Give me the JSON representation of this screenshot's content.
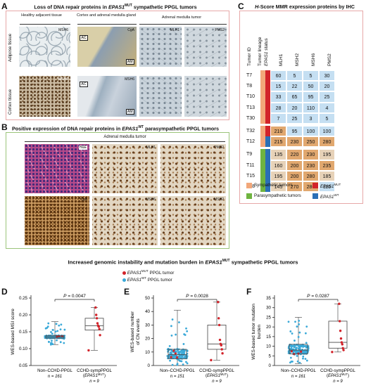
{
  "panelA": {
    "letter": "A",
    "title_pre": "Loss of DNA repair proteins in ",
    "title_gene": "EPAS1",
    "title_sup": "MUT",
    "title_post": " sympathetic PPGL tumors",
    "col_headers": [
      "Healthy adjacent tissue",
      "Cortex and adrenal medulla gland",
      "Adrenal medulla tumor"
    ],
    "row_labels": [
      "Adipose tissue",
      "Cortex tissue"
    ],
    "img_tags": {
      "r1c1": "MSH6",
      "r1c2": "CgA",
      "r1c3": "MLH1",
      "r1c4": "PMS2",
      "r2c1": "MSH6",
      "r2c2": "MSH6"
    },
    "box_labels": {
      "ac": "AC",
      "am": "AM"
    }
  },
  "panelB": {
    "letter": "B",
    "title_pre": "Positive expression of DNA repair proteins in ",
    "title_gene": "EPAS1",
    "title_sup": "WT",
    "title_post": " parasympathetic PPGL tumors",
    "col_header": "Adrenal medulla tumor",
    "img_tags": [
      "H&E",
      "MLH1",
      "PMS2",
      "CgA",
      "MSH6",
      "MSH2"
    ]
  },
  "panelC": {
    "letter": "C",
    "title_pre": "H",
    "title_post": "-Score MMR expression proteins by IHC",
    "col_headers": [
      "Tumor ID",
      "Tumor lineage",
      "EPAS1 status",
      "MLH1",
      "MSH2",
      "MSH6",
      "PMS2"
    ],
    "rows": [
      {
        "id": "T7",
        "values": [
          60,
          5,
          5,
          30
        ],
        "lineage": "sympathetic",
        "status": "MUT"
      },
      {
        "id": "T8",
        "values": [
          15,
          22,
          50,
          20
        ],
        "lineage": "sympathetic",
        "status": "MUT"
      },
      {
        "id": "T10",
        "values": [
          33,
          65,
          95,
          25
        ],
        "lineage": "sympathetic",
        "status": "MUT"
      },
      {
        "id": "T13",
        "values": [
          28,
          20,
          110,
          4
        ],
        "lineage": "sympathetic",
        "status": "MUT"
      },
      {
        "id": "T30",
        "values": [
          7,
          25,
          3,
          5
        ],
        "lineage": "sympathetic",
        "status": "MUT"
      },
      {
        "id": "T32",
        "values": [
          210,
          95,
          100,
          100
        ],
        "lineage": "sympathetic",
        "status": "MUT"
      },
      {
        "id": "T12",
        "values": [
          215,
          230,
          250,
          280
        ],
        "lineage": "sympathetic",
        "status": "WT"
      },
      {
        "id": "T9",
        "values": [
          135,
          220,
          230,
          195
        ],
        "lineage": "parasympathetic",
        "status": "WT"
      },
      {
        "id": "T11",
        "values": [
          160,
          200,
          230,
          235
        ],
        "lineage": "parasympathetic",
        "status": "WT"
      },
      {
        "id": "T15",
        "values": [
          195,
          200,
          280,
          185
        ],
        "lineage": "parasympathetic",
        "status": "WT"
      },
      {
        "id": "T18",
        "values": [
          145,
          270,
          280,
          115
        ],
        "lineage": "parasympathetic",
        "status": "WT"
      }
    ],
    "legend": {
      "symp": "Sympathetic tumors",
      "para": "Parasympathetic tumors",
      "mut_gene": "EPAS1",
      "mut_sup": "MUT",
      "wt_gene": "EPAS1",
      "wt_sup": "WT"
    },
    "colors": {
      "low": "#c5dff2",
      "mid": "#e7d2b8",
      "high": "#e1a86f",
      "symp": "#f2a77a",
      "para": "#6fb440",
      "mut": "#d2232a",
      "wt": "#2a6fb6"
    }
  },
  "bottom": {
    "title_pre": "Increased genomic instability and mutation burden in ",
    "title_gene": "EPAS1",
    "title_sup": "MUT",
    "title_post": " sympathetic PPGL tumors",
    "legend_mut": "PPGL tumor",
    "legend_wt": "PPGL tumor",
    "legend_gene": "EPAS1",
    "legend_mut_sup": "MUT",
    "legend_wt_sup": "WT"
  },
  "chart_data": [
    {
      "type": "box",
      "panel": "D",
      "ylabel": "WES-based MSI score",
      "ylim": [
        0.05,
        0.25
      ],
      "yticks": [
        0.05,
        0.1,
        0.15,
        0.2,
        0.25
      ],
      "ytick_labels": [
        "0.05",
        "0.10",
        "0.15",
        "0.20",
        "0.25"
      ],
      "pvalue": "P = 0.0047",
      "groups": [
        {
          "label": "Non–CCHD-PPGL",
          "n": "n = 161",
          "min": 0.112,
          "q1": 0.131,
          "median": 0.135,
          "q3": 0.139,
          "max": 0.18
        },
        {
          "label": "CCHD-sympPPGL",
          "sublabel": "(EPAS1MUT)",
          "n": "n = 9",
          "min": 0.095,
          "q1": 0.155,
          "median": 0.168,
          "q3": 0.19,
          "max": 0.222,
          "points": [
            0.095,
            0.14,
            0.158,
            0.165,
            0.168,
            0.175,
            0.19,
            0.2,
            0.222
          ]
        }
      ]
    },
    {
      "type": "box",
      "panel": "E",
      "ylabel": "WES-based number of CN events",
      "ylim": [
        0,
        50
      ],
      "yticks": [
        0,
        10,
        20,
        30,
        40,
        50
      ],
      "pvalue": "P = 0.0028",
      "groups": [
        {
          "label": "Non–CCHD-PPGL",
          "n": "n = 151",
          "min": 0,
          "q1": 5,
          "median": 8,
          "q3": 12,
          "max": 41
        },
        {
          "label": "CCHD-sympPPGL",
          "sublabel": "(EPAS1MUT)",
          "n": "n = 9",
          "min": 4,
          "q1": 12,
          "median": 16,
          "q3": 30,
          "max": 47,
          "points": [
            4,
            9,
            12,
            15,
            16,
            19,
            30,
            35,
            47
          ]
        }
      ]
    },
    {
      "type": "box",
      "panel": "F",
      "ylabel": "WES-based tumor mutation burden",
      "ylim": [
        0,
        35
      ],
      "yticks": [
        0,
        5,
        10,
        15,
        20,
        25,
        30,
        35
      ],
      "pvalue": "P = 0.0287",
      "groups": [
        {
          "label": "Non–CCHD-PPGL",
          "n": "n = 161",
          "min": 1,
          "q1": 6,
          "median": 8,
          "q3": 11,
          "max": 25
        },
        {
          "label": "CCHD-sympPPGL",
          "sublabel": "(EPAS1MUT)",
          "n": "n = 9",
          "min": 7,
          "q1": 9,
          "median": 12,
          "q3": 23,
          "max": 32,
          "points": [
            7,
            8,
            9,
            11,
            12,
            14,
            18,
            23,
            32
          ]
        }
      ]
    }
  ]
}
